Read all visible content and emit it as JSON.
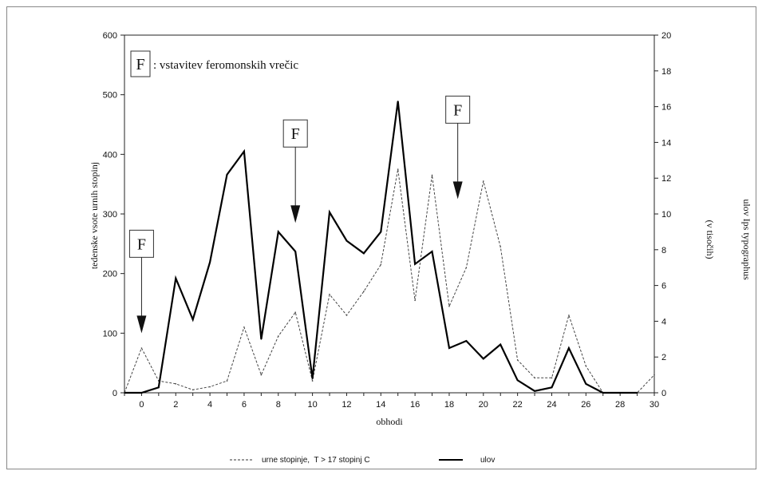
{
  "chart_data": {
    "type": "line",
    "title": "",
    "xlabel": "obhodi",
    "ylabel_left": "tedenske vsote urnih stopinj",
    "ylabel_right": "ulov Ips typographus",
    "ylabel_right_sub": "(v tisočih)",
    "xlim": [
      -1,
      30
    ],
    "ylim_left": [
      0,
      600
    ],
    "ylim_right": [
      0,
      20
    ],
    "x_ticks": [
      0,
      2,
      4,
      6,
      8,
      10,
      12,
      14,
      16,
      18,
      20,
      22,
      24,
      26,
      28,
      30
    ],
    "y_left_ticks": [
      0,
      100,
      200,
      300,
      400,
      500,
      600
    ],
    "y_right_ticks": [
      0,
      2,
      4,
      6,
      8,
      10,
      12,
      14,
      16,
      18,
      20
    ],
    "grid": false,
    "legend_position": "bottom",
    "series": [
      {
        "name": "urne stopinje, T > 17 stopinj C",
        "axis": "left",
        "style": "dashed",
        "x": [
          -1,
          0,
          1,
          2,
          3,
          4,
          5,
          6,
          7,
          8,
          9,
          10,
          11,
          12,
          13,
          14,
          15,
          16,
          17,
          18,
          19,
          20,
          21,
          22,
          23,
          24,
          25,
          26,
          27,
          28,
          29,
          30
        ],
        "values": [
          0,
          75,
          20,
          15,
          5,
          10,
          20,
          110,
          30,
          95,
          135,
          20,
          165,
          130,
          170,
          215,
          375,
          155,
          365,
          145,
          210,
          355,
          245,
          55,
          25,
          25,
          130,
          45,
          0,
          0,
          0,
          30
        ]
      },
      {
        "name": "ulov",
        "axis": "right",
        "style": "solid",
        "x": [
          -1,
          0,
          1,
          2,
          3,
          4,
          5,
          6,
          7,
          8,
          9,
          10,
          11,
          12,
          13,
          14,
          15,
          16,
          17,
          18,
          19,
          20,
          21,
          22,
          23,
          24,
          25,
          26,
          27,
          28,
          29
        ],
        "values": [
          0,
          0,
          0.3,
          6.4,
          4.1,
          7.3,
          12.2,
          13.5,
          3.0,
          9.0,
          7.9,
          0.8,
          10.1,
          8.5,
          7.8,
          9.0,
          16.3,
          7.2,
          7.9,
          2.5,
          2.9,
          1.9,
          2.7,
          0.7,
          0.1,
          0.3,
          2.5,
          0.5,
          0,
          0,
          0
        ]
      }
    ],
    "annotations": [
      {
        "label": "F",
        "arrow_x": 0,
        "arrow_tip_left": 100
      },
      {
        "label": "F",
        "arrow_x": 9,
        "arrow_tip_left": 285
      },
      {
        "label": "F",
        "arrow_x": 18.5,
        "arrow_tip_left": 325
      }
    ],
    "note": {
      "symbol": "F",
      "text": ": vstavitev feromonskih vrečic"
    },
    "legend": [
      {
        "label": "urne stopinje,  T > 17 stopinj C",
        "style": "dashed"
      },
      {
        "label": "ulov",
        "style": "solid"
      }
    ]
  }
}
